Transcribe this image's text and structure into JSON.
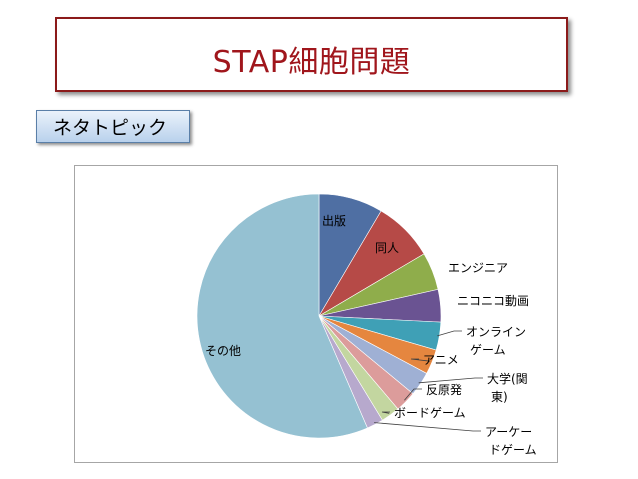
{
  "header": {
    "title": "STAP細胞問題"
  },
  "tag": {
    "label": "ネタトピック"
  },
  "chart_data": {
    "type": "pie",
    "title": "",
    "legend": "none",
    "categories": [
      "出版",
      "同人",
      "エンジニア",
      "ニコニコ動画",
      "オンラインゲーム",
      "アニメ",
      "大学(関東)",
      "反原発",
      "ボードゲーム",
      "アーケードゲーム",
      "その他"
    ],
    "values": [
      8.5,
      8.0,
      5.0,
      4.3,
      3.7,
      3.3,
      3.2,
      2.8,
      2.5,
      2.2,
      56.5
    ],
    "colors": [
      "#4f6fa3",
      "#b64a47",
      "#8fad4b",
      "#6a5392",
      "#3fa0b6",
      "#e5863f",
      "#9fb0d4",
      "#dc9c9b",
      "#c3d6a0",
      "#b7a9cd",
      "#95c1d2"
    ],
    "label_lines": [
      [
        "出版"
      ],
      [
        "同人"
      ],
      [
        "エンジニア"
      ],
      [
        "ニコニコ動画"
      ],
      [
        "オンライン",
        "ゲーム"
      ],
      [
        "アニメ"
      ],
      [
        "大学(関",
        "東)"
      ],
      [
        "反原発"
      ],
      [
        "ボードゲーム"
      ],
      [
        "アーケー",
        "ドゲーム"
      ],
      [
        "その他"
      ]
    ]
  }
}
